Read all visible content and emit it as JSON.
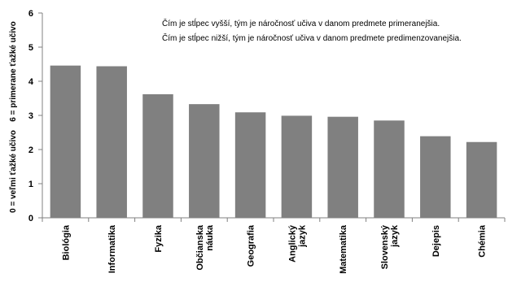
{
  "chart_data": {
    "type": "bar",
    "categories": [
      [
        "Biológia"
      ],
      [
        "Informatika"
      ],
      [
        "Fyzika"
      ],
      [
        "Občianska",
        "náuka"
      ],
      [
        "Geografia"
      ],
      [
        "Anglický",
        "jazyk"
      ],
      [
        "Matematika"
      ],
      [
        "Slovenský",
        "jazyk"
      ],
      [
        "Dejepis"
      ],
      [
        "Chémia"
      ]
    ],
    "values": [
      4.46,
      4.44,
      3.62,
      3.33,
      3.09,
      2.99,
      2.96,
      2.85,
      2.39,
      2.22
    ],
    "ylim": [
      0,
      6
    ],
    "yticks": [
      "0",
      "1",
      "2",
      "3",
      "4",
      "5",
      "6"
    ],
    "ylabel_top": "6 = primerane ťažké učivo",
    "ylabel_bottom": "0 = veľmi ťažké učivo",
    "annotations": [
      "Čím je stĺpec vyšší, tým je náročnosť učiva v danom predmete primeranejšia.",
      "Čím je stĺpec nižší, tým je náročnosť učiva v danom predmete predimenzovanejšia."
    ],
    "grid": false,
    "legend": "none",
    "bar_color": "#808080",
    "axis_color": "#808080"
  }
}
